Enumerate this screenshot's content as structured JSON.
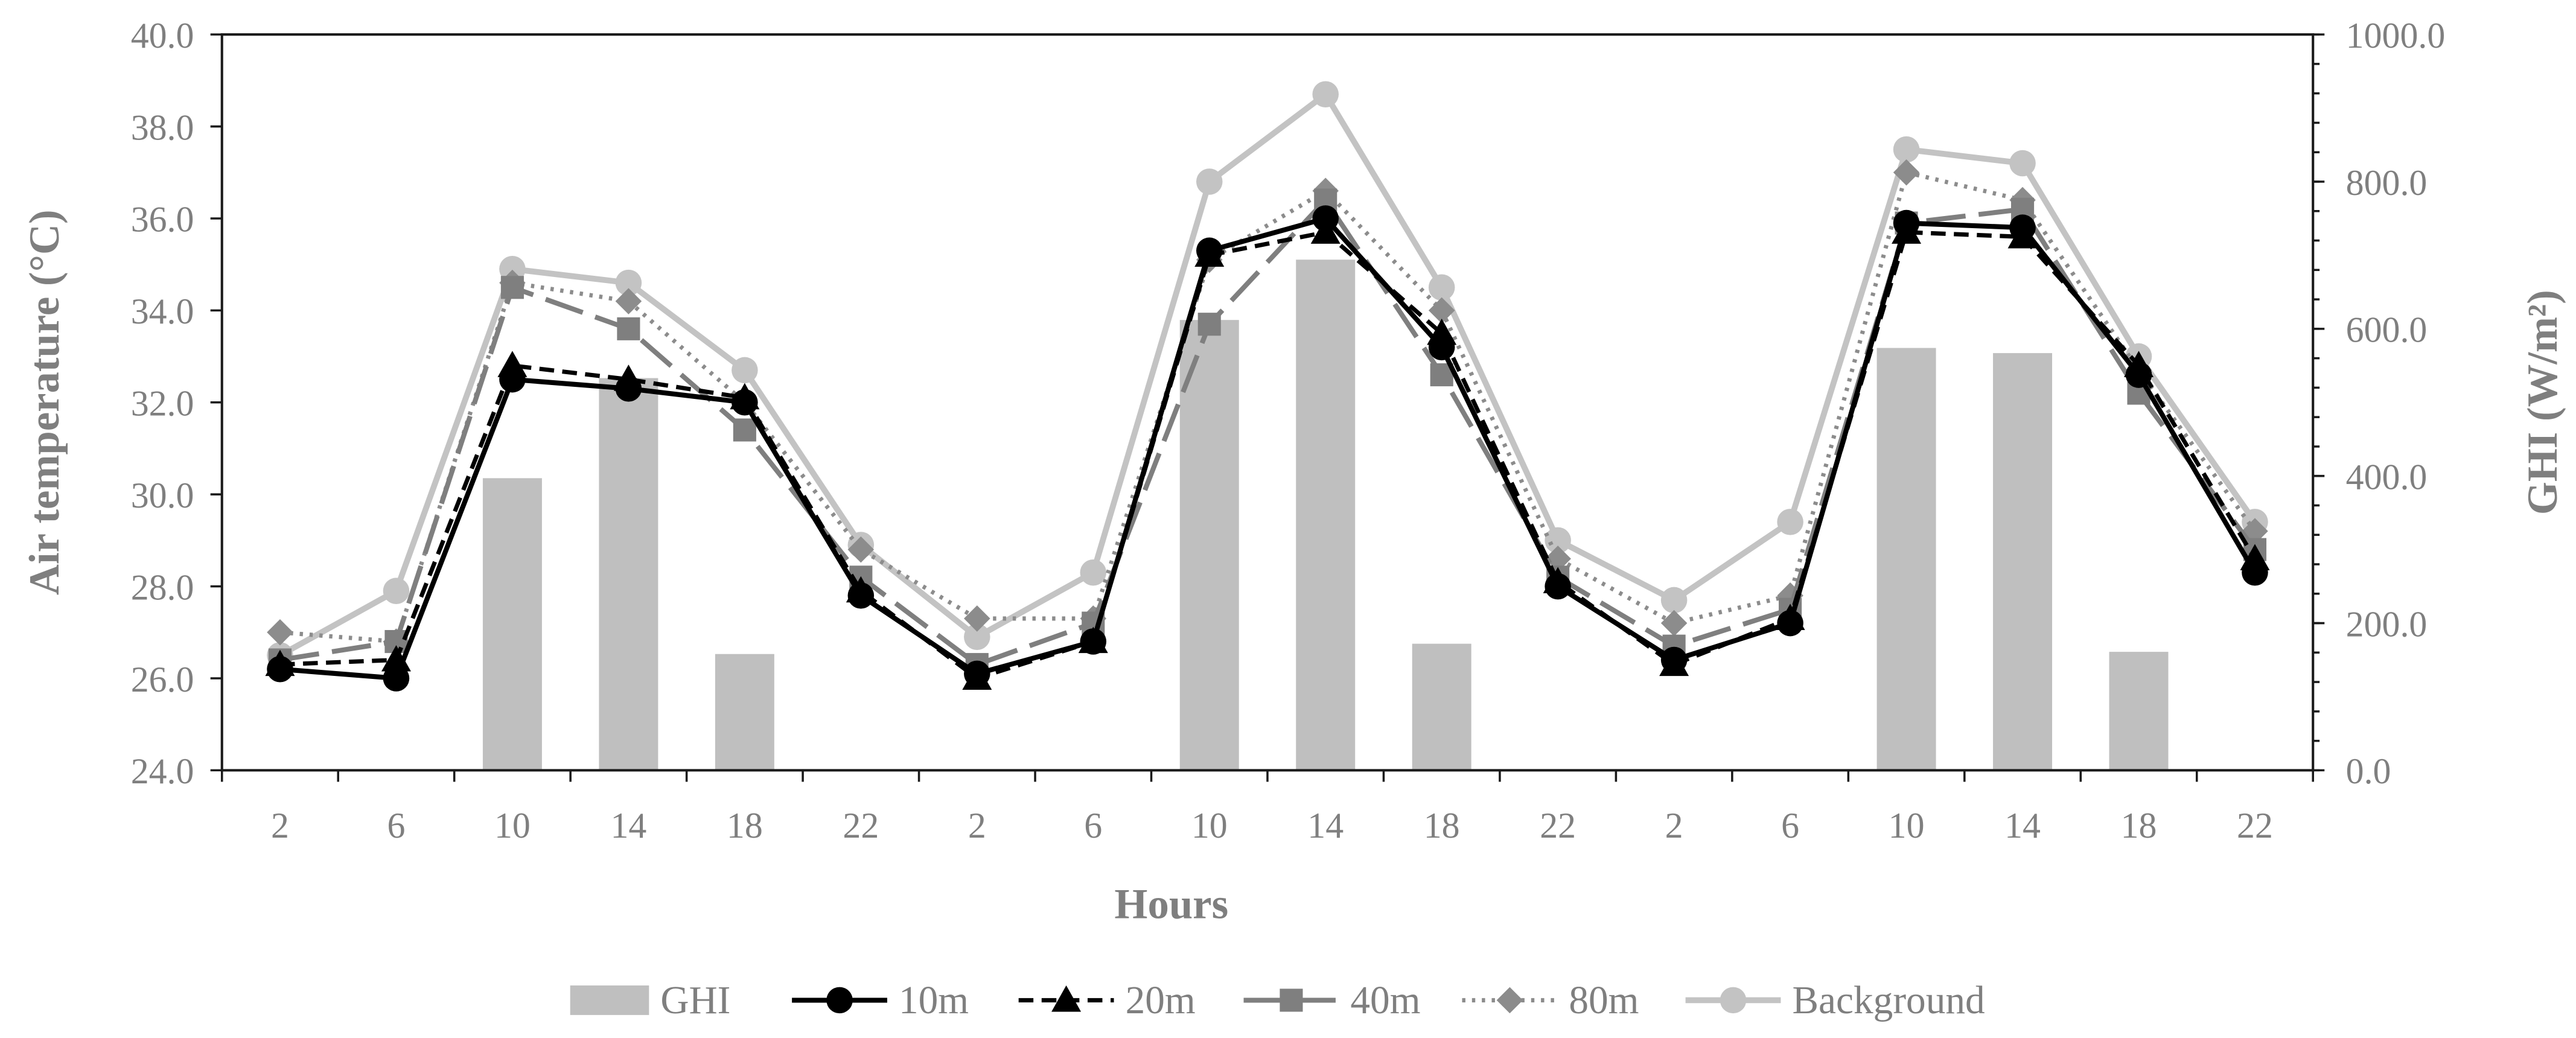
{
  "chart_data": {
    "type": "line",
    "title": "",
    "xlabel": "Hours",
    "ylabel": "Air temperature (°C)",
    "y2label": "GHI (W/m²)",
    "categories": [
      "2",
      "6",
      "10",
      "14",
      "18",
      "22",
      "2",
      "6",
      "10",
      "14",
      "18",
      "22",
      "2",
      "6",
      "10",
      "14",
      "18",
      "22"
    ],
    "ylim": [
      24,
      40
    ],
    "y2lim": [
      0,
      1000
    ],
    "yticks": [
      "24.0",
      "26.0",
      "28.0",
      "30.0",
      "32.0",
      "34.0",
      "36.0",
      "38.0",
      "40.0"
    ],
    "ytick_values": [
      24,
      26,
      28,
      30,
      32,
      34,
      36,
      38,
      40
    ],
    "y2ticks": [
      "0.0",
      "200.0",
      "400.0",
      "600.0",
      "800.0",
      "1000.0"
    ],
    "y2tick_values": [
      0,
      200,
      400,
      600,
      800,
      1000
    ],
    "grid": false,
    "legend_position": "bottom",
    "series": [
      {
        "name": "GHI",
        "type": "bar",
        "axis": "right",
        "color": "#bfbfbf",
        "values": [
          0,
          0,
          397,
          533,
          158,
          0,
          0,
          0,
          612,
          694,
          172,
          0,
          0,
          0,
          574,
          567,
          161,
          0
        ]
      },
      {
        "name": "10m",
        "type": "line",
        "axis": "left",
        "color": "#000000",
        "dash": "solid",
        "marker": "circle",
        "values": [
          26.2,
          26.0,
          32.5,
          32.3,
          32.0,
          27.8,
          26.1,
          26.8,
          35.3,
          36.0,
          33.2,
          28.0,
          26.4,
          27.2,
          35.9,
          35.8,
          32.6,
          28.3
        ]
      },
      {
        "name": "20m",
        "type": "line",
        "axis": "left",
        "color": "#000000",
        "dash": "dashed",
        "marker": "triangle",
        "values": [
          26.3,
          26.4,
          32.8,
          32.5,
          32.1,
          27.9,
          26.0,
          26.8,
          35.2,
          35.7,
          33.5,
          28.1,
          26.3,
          27.3,
          35.7,
          35.6,
          32.8,
          28.6
        ]
      },
      {
        "name": "40m",
        "type": "line",
        "axis": "left",
        "color": "#7f7f7f",
        "dash": "long-dash",
        "marker": "square",
        "values": [
          26.4,
          26.8,
          34.5,
          33.6,
          31.4,
          28.2,
          26.3,
          27.2,
          33.7,
          36.4,
          32.6,
          28.2,
          26.7,
          27.5,
          35.9,
          36.2,
          32.2,
          28.8
        ]
      },
      {
        "name": "80m",
        "type": "line",
        "axis": "left",
        "color": "#8c8c8c",
        "dash": "dotted",
        "marker": "diamond",
        "values": [
          27.0,
          26.8,
          34.6,
          34.2,
          32.0,
          28.8,
          27.3,
          27.3,
          35.1,
          36.6,
          34.0,
          28.6,
          27.2,
          27.8,
          37.0,
          36.4,
          32.7,
          29.2
        ]
      },
      {
        "name": "Background",
        "type": "line",
        "axis": "left",
        "color": "#c3c3c3",
        "dash": "solid",
        "marker": "circle",
        "values": [
          26.5,
          27.9,
          34.9,
          34.6,
          32.7,
          28.9,
          26.9,
          28.3,
          36.8,
          38.7,
          34.5,
          29.0,
          27.7,
          29.4,
          37.5,
          37.2,
          33.0,
          29.4
        ]
      }
    ]
  }
}
